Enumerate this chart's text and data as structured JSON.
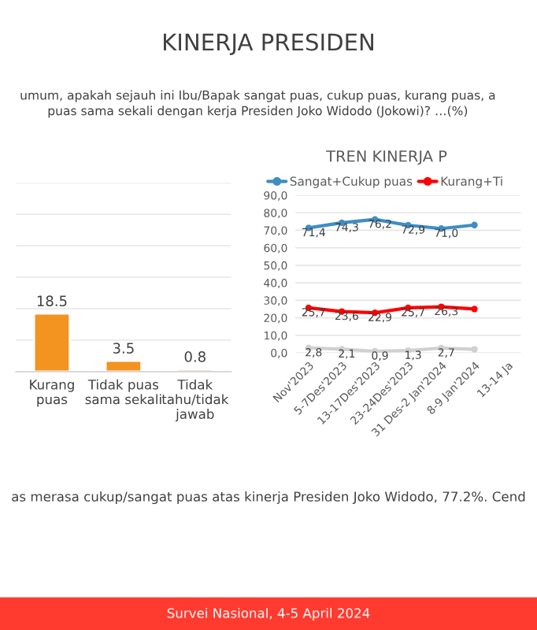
{
  "chart_data": [
    {
      "type": "bar",
      "title": "KINERJA PRESIDEN",
      "subtitle": "umum, apakah sejauh ini Ibu/Bapak sangat puas, cukup puas, kurang puas, a\npuas sama sekali dengan kerja Presiden Joko Widodo (Jokowi)? …(%)",
      "categories": [
        "Kurang\npuas",
        "Tidak puas\nsama sekali",
        "Tidak\ntahu/tidak\njawab"
      ],
      "values": [
        18.5,
        3.5,
        0.8
      ],
      "color": "#f39320",
      "data_labels": true,
      "ylim": [
        0,
        60
      ],
      "yticks": [
        {
          "value": 0,
          "label": null
        },
        {
          "value": 10,
          "label": null
        },
        {
          "value": 20,
          "label": null
        },
        {
          "value": 30,
          "label": null
        },
        {
          "value": 40,
          "label": null
        },
        {
          "value": 50,
          "label": null
        },
        {
          "value": 60,
          "label": null
        }
      ],
      "grid": "y",
      "tick_labels": "x",
      "annotations": [
        "as merasa cukup/sangat puas atas kinerja Presiden Joko Widodo, 77.2%. Cend",
        "Survei Nasional, 4-5 April 2024"
      ]
    },
    {
      "type": "line",
      "title": "TREN KINERJA P",
      "categories": [
        "Nov'2023",
        "5-7Des'2023",
        "13-17Des'2023",
        "23-24Des'2023",
        "31 Des-2 Jan'2024",
        "8-9 Jan'2024",
        "13-14 Ja"
      ],
      "series": [
        {
          "name": "Sangat+Cukup puas",
          "color": "#3e8ec4",
          "values": [
            71.4,
            74.3,
            76.2,
            72.9,
            71.0,
            73.0,
            null
          ],
          "value_labels": [
            "71,4",
            "74,3",
            "76,2",
            "72,9",
            "71,0",
            null,
            null
          ]
        },
        {
          "name": "Kurang+Ti",
          "color": "#ff0000",
          "values": [
            25.7,
            23.6,
            22.9,
            25.7,
            26.3,
            25,
            null
          ],
          "value_labels": [
            "25,7",
            "23,6",
            "22,9",
            "25,7",
            "26,3",
            null,
            null
          ]
        },
        {
          "color": "#d0d0d0",
          "values": [
            2.8,
            2.1,
            0.9,
            1.3,
            2.7,
            2,
            null
          ],
          "value_labels": [
            "2,8",
            "2,1",
            "0,9",
            "1,3",
            "2,7",
            null,
            null
          ]
        }
      ],
      "ylim": [
        0,
        90
      ],
      "yticks": [
        {
          "value": 0,
          "label": "0,0"
        },
        {
          "value": 10,
          "label": "10,0"
        },
        {
          "value": 20,
          "label": "20,0"
        },
        {
          "value": 30,
          "label": "30,0"
        },
        {
          "value": 40,
          "label": "40,0"
        },
        {
          "value": 50,
          "label": "50,0"
        },
        {
          "value": 60,
          "label": "60,0"
        },
        {
          "value": 70,
          "label": "70,0"
        },
        {
          "value": 80,
          "label": "80,0"
        },
        {
          "value": 90,
          "label": "90,0"
        }
      ],
      "grid": "y",
      "legend": "top",
      "marker": "circle",
      "line_style": "solid"
    }
  ]
}
